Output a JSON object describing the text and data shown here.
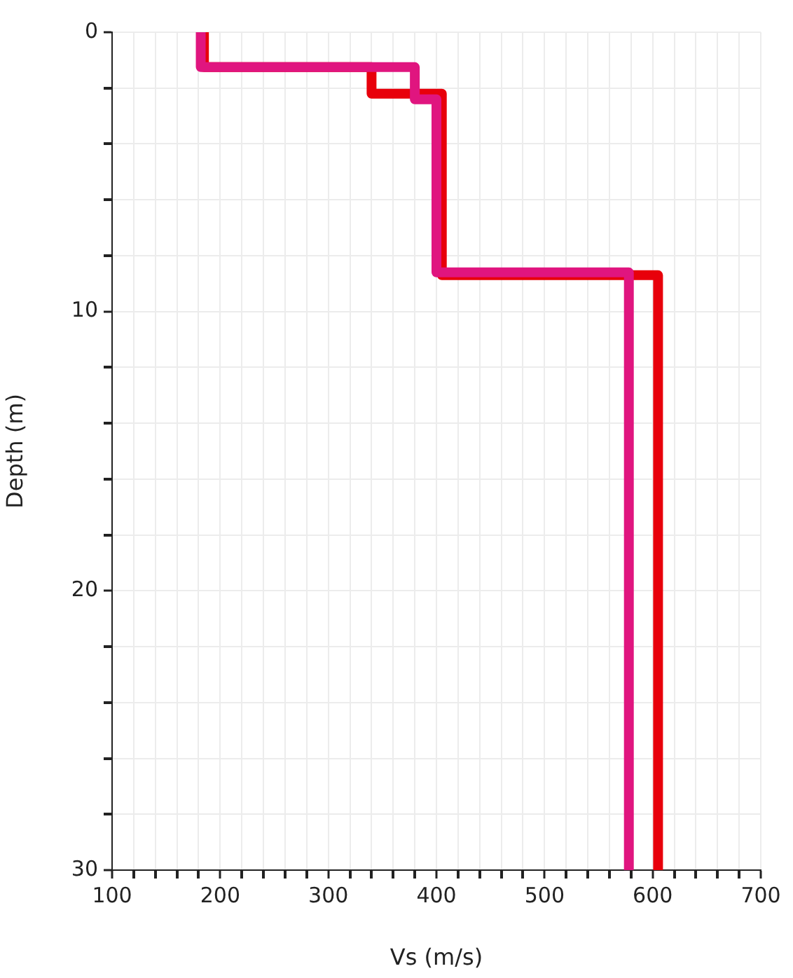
{
  "chart_data": {
    "type": "line",
    "xlabel": "Vs (m/s)",
    "ylabel": "Depth (m)",
    "series": [
      {
        "color": "#e0157f",
        "x": [
          182,
          182,
          380,
          380,
          400,
          400,
          578,
          578
        ],
        "values": [
          0,
          1.25,
          1.25,
          2.4,
          2.4,
          8.6,
          8.6,
          30
        ]
      },
      {
        "color": "#e8000b",
        "x": [
          185,
          185,
          340,
          340,
          405,
          405,
          605,
          605
        ],
        "values": [
          0,
          1.25,
          1.25,
          2.2,
          2.2,
          8.7,
          8.7,
          30
        ]
      }
    ],
    "xlim": [
      100,
      700
    ],
    "xticks": [
      100,
      {
        "value": 120,
        "label": null
      },
      {
        "value": 140,
        "label": null
      },
      {
        "value": 160,
        "label": null
      },
      {
        "value": 180,
        "label": null
      },
      200,
      {
        "value": 220,
        "label": null
      },
      {
        "value": 240,
        "label": null
      },
      {
        "value": 260,
        "label": null
      },
      {
        "value": 280,
        "label": null
      },
      300,
      {
        "value": 320,
        "label": null
      },
      {
        "value": 340,
        "label": null
      },
      {
        "value": 360,
        "label": null
      },
      {
        "value": 380,
        "label": null
      },
      400,
      {
        "value": 420,
        "label": null
      },
      {
        "value": 440,
        "label": null
      },
      {
        "value": 460,
        "label": null
      },
      {
        "value": 480,
        "label": null
      },
      500,
      {
        "value": 520,
        "label": null
      },
      {
        "value": 540,
        "label": null
      },
      {
        "value": 560,
        "label": null
      },
      {
        "value": 580,
        "label": null
      },
      600,
      {
        "value": 620,
        "label": null
      },
      {
        "value": 640,
        "label": null
      },
      {
        "value": 660,
        "label": null
      },
      {
        "value": 680,
        "label": null
      },
      700
    ],
    "ylim": [
      30,
      0
    ],
    "yticks": [
      0,
      {
        "value": 2,
        "label": null
      },
      {
        "value": 4,
        "label": null
      },
      {
        "value": 6,
        "label": null
      },
      {
        "value": 8,
        "label": null
      },
      10,
      {
        "value": 12,
        "label": null
      },
      {
        "value": 14,
        "label": null
      },
      {
        "value": 16,
        "label": null
      },
      {
        "value": 18,
        "label": null
      },
      20,
      {
        "value": 22,
        "label": null
      },
      {
        "value": 24,
        "label": null
      },
      {
        "value": 26,
        "label": null
      },
      {
        "value": 28,
        "label": null
      },
      30
    ],
    "grid": true,
    "legend": false,
    "marker": "none",
    "line_style": "solid"
  }
}
